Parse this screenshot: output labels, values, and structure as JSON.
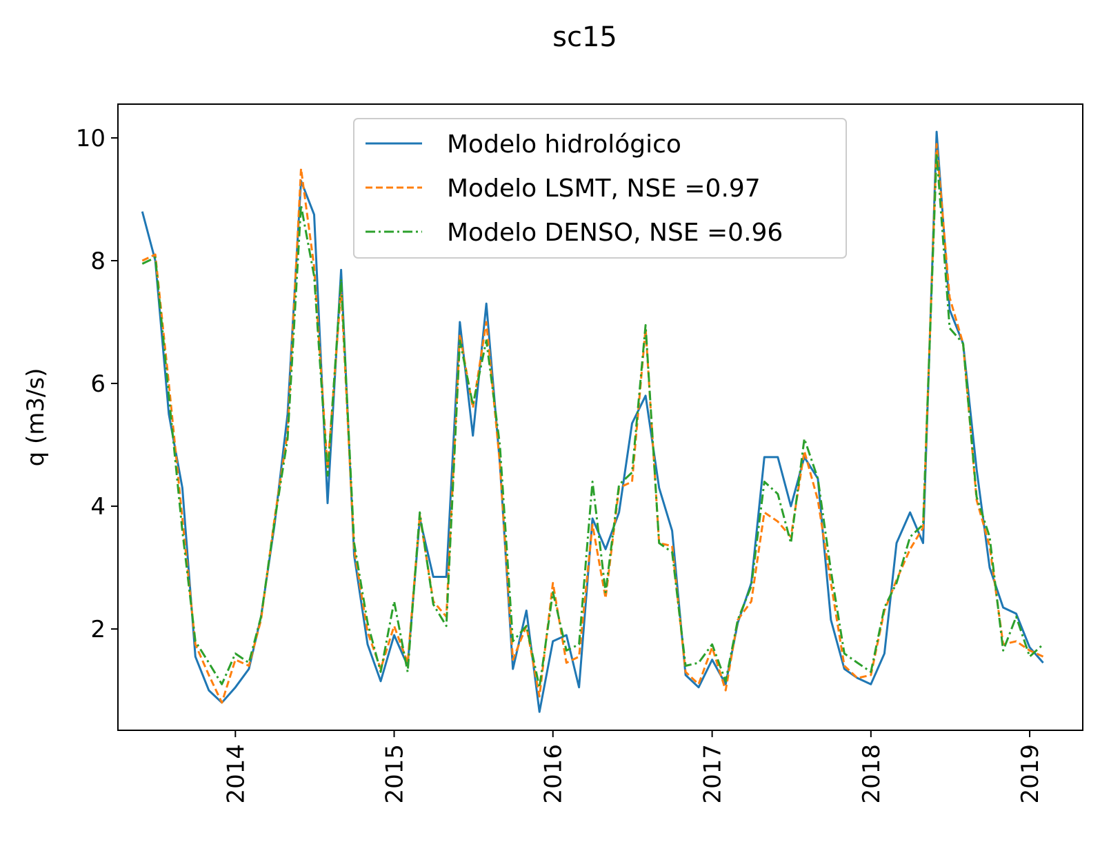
{
  "chart_data": {
    "type": "line",
    "title": "sc15",
    "xlabel": "",
    "ylabel": "q (m3/s)",
    "xlim": [
      "2013-04-06",
      "2019-05-03"
    ],
    "ylim": [
      0.35,
      10.55
    ],
    "x_ticks": [
      "2014",
      "2015",
      "2016",
      "2017",
      "2018",
      "2019"
    ],
    "y_ticks": [
      2,
      4,
      6,
      8,
      10
    ],
    "y_tick_labels": [
      "2",
      "4",
      "6",
      "8",
      "10"
    ],
    "grid": false,
    "legend_position": "top-center",
    "x": [
      "2013-06",
      "2013-07",
      "2013-08",
      "2013-09",
      "2013-10",
      "2013-11",
      "2013-12",
      "2014-01",
      "2014-02",
      "2014-03",
      "2014-04",
      "2014-05",
      "2014-06",
      "2014-07",
      "2014-08",
      "2014-09",
      "2014-10",
      "2014-11",
      "2014-12",
      "2015-01",
      "2015-02",
      "2015-03",
      "2015-04",
      "2015-05",
      "2015-06",
      "2015-07",
      "2015-08",
      "2015-09",
      "2015-10",
      "2015-11",
      "2015-12",
      "2016-01",
      "2016-02",
      "2016-03",
      "2016-04",
      "2016-05",
      "2016-06",
      "2016-07",
      "2016-08",
      "2016-09",
      "2016-10",
      "2016-11",
      "2016-12",
      "2017-01",
      "2017-02",
      "2017-03",
      "2017-04",
      "2017-05",
      "2017-06",
      "2017-07",
      "2017-08",
      "2017-09",
      "2017-10",
      "2017-11",
      "2017-12",
      "2018-01",
      "2018-02",
      "2018-03",
      "2018-04",
      "2018-05",
      "2018-06",
      "2018-07",
      "2018-08",
      "2018-09",
      "2018-10",
      "2018-11",
      "2018-12",
      "2019-01",
      "2019-02"
    ],
    "series": [
      {
        "name": "Modelo hidrológico",
        "color": "#1f77b4",
        "dash": "solid",
        "values": [
          8.8,
          8.0,
          5.5,
          4.3,
          1.55,
          1.0,
          0.8,
          1.05,
          1.35,
          2.2,
          3.7,
          5.5,
          9.3,
          8.75,
          4.05,
          7.85,
          3.2,
          1.75,
          1.15,
          1.9,
          1.4,
          3.8,
          2.85,
          2.85,
          7.0,
          5.15,
          7.3,
          4.7,
          1.35,
          2.3,
          0.65,
          1.8,
          1.9,
          1.05,
          3.8,
          3.3,
          3.9,
          5.35,
          5.8,
          4.3,
          3.6,
          1.25,
          1.05,
          1.5,
          1.1,
          2.1,
          2.75,
          4.8,
          4.8,
          4.0,
          4.8,
          4.45,
          2.15,
          1.35,
          1.2,
          1.1,
          1.6,
          3.4,
          3.9,
          3.4,
          10.1,
          7.2,
          6.65,
          4.6,
          3.0,
          2.35,
          2.25,
          1.7,
          1.45
        ]
      },
      {
        "name": "Modelo LSMT, NSE =0.97",
        "color": "#ff7f0e",
        "dash": "dashed",
        "values": [
          8.0,
          8.1,
          6.0,
          3.8,
          1.75,
          1.25,
          0.8,
          1.5,
          1.4,
          2.15,
          3.8,
          5.2,
          9.5,
          7.9,
          4.6,
          7.55,
          3.3,
          1.95,
          1.35,
          2.05,
          1.45,
          3.85,
          2.45,
          2.2,
          6.8,
          5.6,
          7.0,
          4.7,
          1.5,
          2.05,
          0.9,
          2.75,
          1.45,
          1.55,
          3.7,
          2.5,
          4.3,
          4.4,
          6.9,
          3.4,
          3.35,
          1.3,
          1.1,
          1.7,
          1.0,
          2.15,
          2.45,
          3.9,
          3.75,
          3.5,
          4.9,
          4.1,
          2.75,
          1.4,
          1.2,
          1.25,
          2.3,
          2.8,
          3.3,
          3.65,
          9.9,
          7.4,
          6.65,
          4.1,
          3.35,
          1.75,
          1.8,
          1.65,
          1.55
        ]
      },
      {
        "name": "Modelo DENSO, NSE =0.96",
        "color": "#2ca02c",
        "dash": "dashdot",
        "values": [
          7.95,
          8.05,
          5.8,
          3.6,
          1.8,
          1.45,
          1.1,
          1.6,
          1.45,
          2.2,
          3.75,
          5.1,
          8.9,
          7.75,
          4.5,
          7.7,
          3.4,
          2.1,
          1.3,
          2.45,
          1.3,
          3.9,
          2.4,
          2.05,
          6.7,
          5.65,
          6.7,
          5.0,
          1.8,
          2.05,
          1.05,
          2.6,
          1.65,
          1.75,
          4.4,
          2.6,
          4.35,
          4.55,
          6.95,
          3.4,
          3.25,
          1.4,
          1.45,
          1.75,
          1.15,
          2.15,
          2.7,
          4.4,
          4.2,
          3.4,
          5.1,
          4.45,
          2.95,
          1.6,
          1.45,
          1.3,
          2.35,
          2.75,
          3.5,
          3.7,
          9.75,
          6.9,
          6.65,
          4.15,
          3.5,
          1.65,
          2.2,
          1.55,
          1.75
        ]
      }
    ]
  }
}
